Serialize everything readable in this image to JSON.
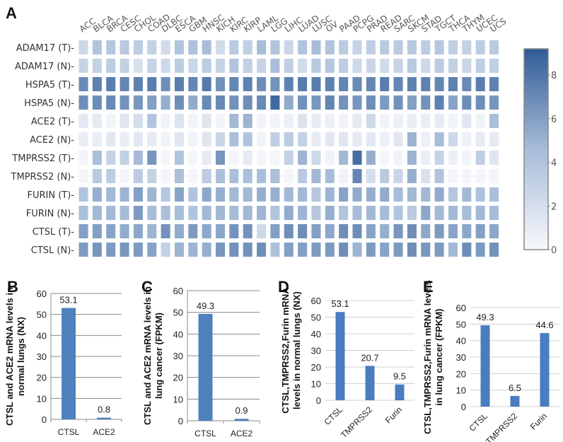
{
  "panels": {
    "a": "A",
    "b": "B",
    "c": "C",
    "d": "D",
    "e": "E"
  },
  "chart_data": [
    {
      "id": "A",
      "type": "heatmap",
      "title": "",
      "columns": [
        "ACC",
        "BLCA",
        "BRCA",
        "CESC",
        "CHOL",
        "COAD",
        "DLBC",
        "ESCA",
        "GBM",
        "HNSC",
        "KICH",
        "KIRC",
        "KIRP",
        "LAML",
        "LGG",
        "LIHC",
        "LUAD",
        "LUSC",
        "OV",
        "PAAD",
        "PCPG",
        "PRAD",
        "READ",
        "SARC",
        "SKCM",
        "STAD",
        "TGCT",
        "THCA",
        "THYM",
        "UCEC",
        "UCS"
      ],
      "rows": [
        "ADAM17 (T)",
        "ADAM17 (N)",
        "HSPA5 (T)",
        "HSPA5 (N)",
        "ACE2 (T)",
        "ACE2 (N)",
        "TMPRSS2 (T)",
        "TMPRSS2 (N)",
        "FURIN (T)",
        "FURIN (N)",
        "CTSL (T)",
        "CTSL (N)"
      ],
      "values": [
        [
          2.5,
          4.0,
          3.8,
          3.6,
          3.4,
          3.0,
          2.2,
          4.0,
          4.2,
          4.5,
          2.2,
          3.6,
          3.2,
          4.6,
          4.0,
          2.6,
          4.0,
          4.5,
          4.0,
          3.5,
          2.8,
          3.2,
          3.6,
          3.5,
          3.6,
          3.4,
          3.8,
          3.2,
          3.0,
          3.4,
          3.5
        ],
        [
          2.8,
          3.0,
          3.4,
          3.0,
          1.8,
          2.8,
          2.4,
          3.4,
          2.6,
          3.4,
          2.8,
          4.0,
          3.0,
          2.8,
          4.5,
          3.2,
          2.2,
          3.6,
          3.8,
          3.4,
          2.4,
          2.6,
          2.2,
          2.8,
          3.6,
          2.4,
          3.4,
          3.0,
          2.6,
          3.2,
          3.2
        ],
        [
          7.0,
          7.4,
          7.6,
          7.2,
          7.4,
          7.6,
          6.8,
          7.6,
          7.2,
          7.8,
          6.6,
          7.2,
          7.4,
          6.8,
          6.6,
          7.4,
          7.6,
          7.6,
          7.4,
          7.2,
          7.0,
          7.2,
          7.6,
          7.2,
          7.4,
          7.4,
          7.2,
          7.4,
          7.0,
          7.6,
          7.4
        ],
        [
          6.8,
          6.8,
          7.0,
          6.6,
          6.4,
          6.0,
          5.2,
          6.8,
          5.4,
          7.0,
          7.0,
          6.6,
          6.8,
          7.0,
          8.6,
          5.4,
          6.6,
          6.4,
          7.2,
          6.6,
          6.4,
          6.8,
          6.2,
          6.6,
          6.0,
          6.6,
          7.4,
          5.8,
          6.8,
          6.8,
          6.4
        ],
        [
          1.2,
          1.0,
          0.4,
          1.4,
          2.0,
          4.0,
          0.4,
          1.6,
          0.4,
          1.4,
          0.2,
          4.8,
          5.0,
          0.4,
          0.4,
          0.6,
          1.6,
          1.0,
          0.6,
          0.4,
          1.0,
          2.4,
          0.4,
          0.6,
          0.8,
          0.8,
          1.0,
          0.4,
          1.4,
          0.4,
          4.4
        ],
        [
          0.8,
          0.8,
          1.2,
          0.8,
          1.2,
          1.0,
          0.4,
          1.4,
          0.4,
          1.4,
          2.6,
          4.4,
          4.0,
          0.4,
          3.2,
          3.4,
          3.0,
          1.0,
          1.2,
          1.4,
          1.0,
          1.2,
          0.6,
          1.2,
          5.0,
          0.6,
          4.6,
          2.4,
          0.6,
          1.0,
          1.0
        ],
        [
          0.2,
          4.4,
          2.8,
          3.0,
          4.6,
          6.4,
          0.2,
          4.0,
          0.2,
          1.0,
          6.4,
          0.2,
          1.0,
          0.2,
          0.2,
          3.0,
          5.0,
          2.4,
          0.4,
          4.8,
          8.4,
          5.2,
          0.2,
          0.4,
          5.0,
          0.8,
          2.8,
          0.6,
          0.4,
          3.2,
          1.4
        ],
        [
          0.2,
          3.6,
          3.4,
          0.2,
          3.4,
          3.0,
          0.2,
          4.4,
          0.2,
          3.4,
          4.4,
          4.4,
          4.4,
          4.4,
          4.4,
          0.2,
          3.6,
          4.8,
          4.6,
          0.4,
          7.2,
          2.0,
          3.6,
          2.6,
          5.2,
          1.8,
          4.0,
          0.2,
          0.2,
          0.2,
          0.2
        ],
        [
          4.0,
          5.2,
          4.8,
          5.0,
          6.0,
          5.0,
          3.8,
          5.8,
          4.0,
          5.6,
          5.2,
          4.8,
          4.8,
          5.2,
          5.2,
          4.8,
          4.8,
          3.8,
          5.0,
          5.8,
          5.4,
          5.2,
          5.4,
          4.6,
          4.8,
          4.8,
          5.4,
          3.8,
          4.8,
          4.2,
          4.4
        ],
        [
          4.4,
          4.8,
          4.8,
          4.6,
          6.2,
          4.6,
          4.4,
          4.6,
          4.0,
          4.8,
          4.8,
          4.6,
          4.8,
          5.0,
          4.0,
          5.4,
          5.0,
          3.8,
          5.2,
          4.0,
          4.6,
          4.8,
          4.6,
          4.0,
          3.6,
          5.6,
          4.8,
          4.8,
          4.6,
          4.8,
          4.6
        ],
        [
          6.0,
          6.0,
          5.8,
          5.4,
          5.6,
          5.0,
          6.6,
          5.4,
          6.2,
          5.6,
          5.6,
          6.6,
          6.6,
          2.4,
          6.0,
          6.8,
          6.8,
          6.0,
          5.6,
          6.8,
          6.8,
          5.8,
          5.2,
          6.4,
          6.8,
          5.6,
          6.2,
          5.8,
          5.6,
          6.0,
          5.6
        ],
        [
          6.2,
          6.4,
          6.2,
          6.4,
          6.2,
          5.8,
          3.0,
          5.0,
          5.0,
          5.2,
          6.4,
          6.6,
          6.6,
          6.8,
          4.2,
          6.0,
          6.0,
          6.2,
          6.2,
          6.8,
          5.0,
          6.2,
          5.8,
          6.2,
          6.8,
          6.4,
          6.2,
          4.8,
          6.8,
          6.2,
          6.6
        ]
      ],
      "colorbar": {
        "min": 0,
        "max": 9.2,
        "ticks": [
          0,
          2,
          4,
          6,
          8
        ],
        "low_color": "#f7f8fb",
        "high_color": "#2f5c96"
      }
    },
    {
      "id": "B",
      "type": "bar",
      "categories": [
        "CTSL",
        "ACE2"
      ],
      "values": [
        53.1,
        0.8
      ],
      "labels": [
        "53.1",
        "0.8"
      ],
      "ylabel": "CTSL and ACE2 mRNA levels in normal lungs (NX)",
      "ylim": [
        0,
        60
      ],
      "yticks": [
        0,
        10,
        20,
        30,
        40,
        50,
        60
      ],
      "grid": true,
      "bar_color": "#4f81bd"
    },
    {
      "id": "C",
      "type": "bar",
      "categories": [
        "CTSL",
        "ACE2"
      ],
      "values": [
        49.3,
        0.9
      ],
      "labels": [
        "49.3",
        "0.9"
      ],
      "ylabel": "CTSL and ACE2 mRNA levels in lung cancer (FPKM)",
      "ylim": [
        0,
        60
      ],
      "yticks": [
        0,
        10,
        20,
        30,
        40,
        50,
        60
      ],
      "grid": true,
      "bar_color": "#4f81bd"
    },
    {
      "id": "D",
      "type": "bar",
      "categories": [
        "CTSL",
        "TMPRSS2",
        "Furin"
      ],
      "values": [
        53.1,
        20.7,
        9.5
      ],
      "labels": [
        "53.1",
        "20.7",
        "9.5"
      ],
      "ylabel": "CTSL,TMPRSS2,Furin mRNA levels in normal lungs (NX)",
      "ylim": [
        0,
        60
      ],
      "yticks": [
        0,
        10,
        20,
        30,
        40,
        50,
        60
      ],
      "grid": true,
      "bar_color": "#4a7cc0"
    },
    {
      "id": "E",
      "type": "bar",
      "categories": [
        "CTSL",
        "TMPRSS2",
        "Furin"
      ],
      "values": [
        49.3,
        6.5,
        44.6
      ],
      "labels": [
        "49.3",
        "6.5",
        "44.6"
      ],
      "ylabel": "CTSL,TMPRSS2,Furin mRNA levels in lung cancer (FPKM)",
      "ylim": [
        0,
        60
      ],
      "yticks": [
        0,
        10,
        20,
        30,
        40,
        50,
        60
      ],
      "grid": true,
      "bar_color": "#4a7cc0"
    }
  ]
}
